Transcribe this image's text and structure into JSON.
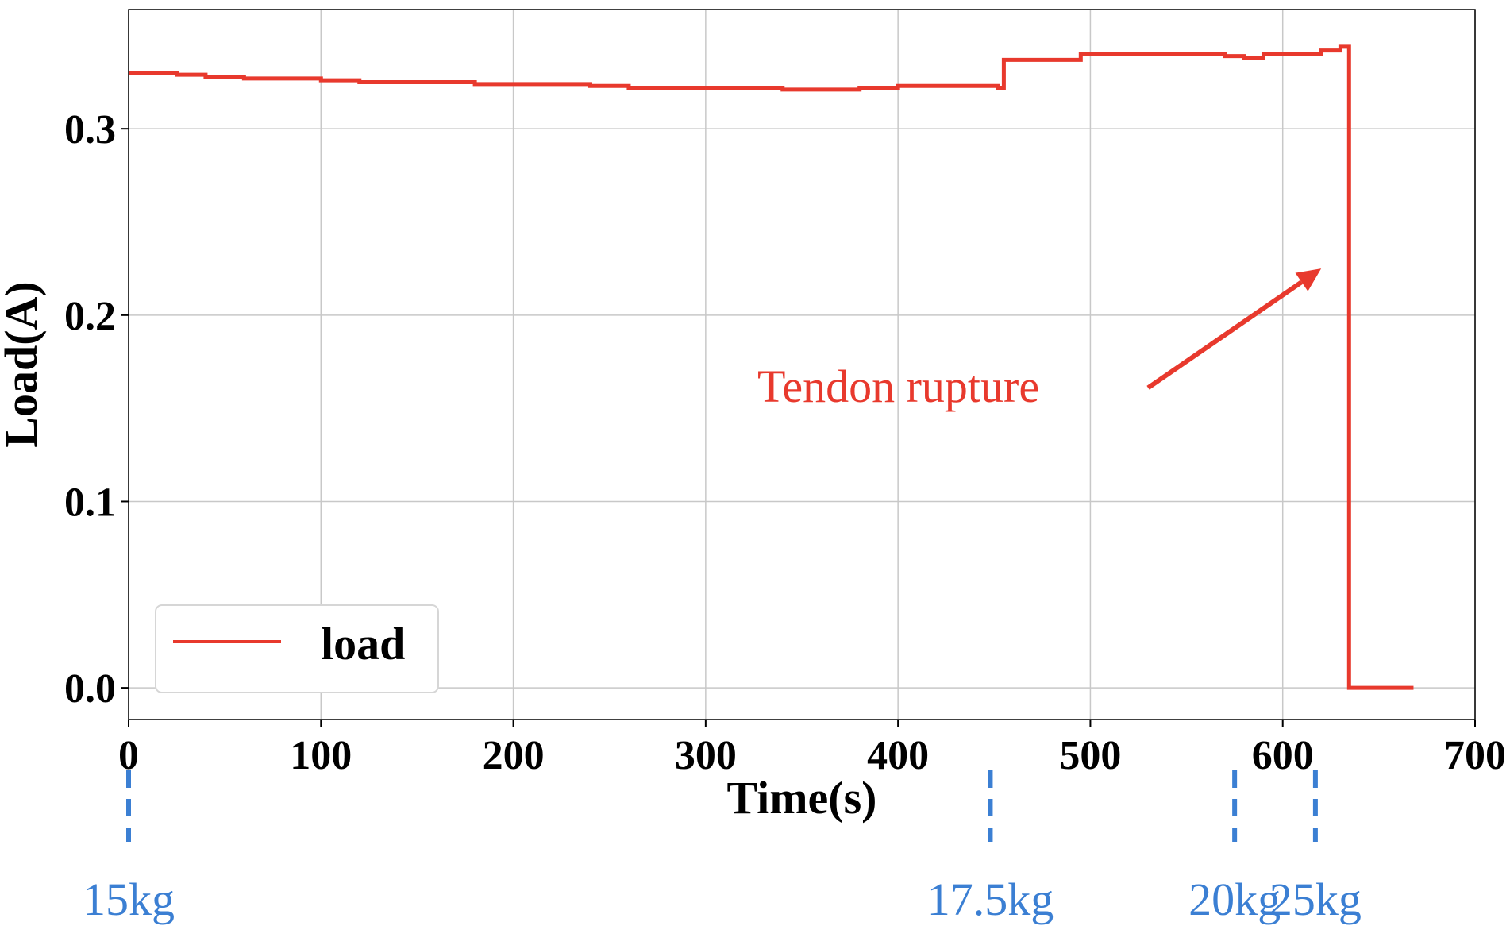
{
  "chart_data": {
    "type": "line",
    "xlabel": "Time(s)",
    "ylabel": "Load(A)",
    "xlim": [
      0,
      700
    ],
    "ylim": [
      -0.017,
      0.364
    ],
    "x_ticks": [
      0,
      100,
      200,
      300,
      400,
      500,
      600,
      700
    ],
    "y_ticks": [
      0.0,
      0.1,
      0.2,
      0.3
    ],
    "y_tick_labels": [
      "0.0",
      "0.1",
      "0.2",
      "0.3"
    ],
    "grid": true,
    "legend": {
      "position": "lower-left",
      "entries": [
        "load"
      ]
    },
    "series": [
      {
        "name": "load",
        "color": "#e8392d",
        "x": [
          0,
          10,
          25,
          40,
          60,
          80,
          100,
          120,
          150,
          180,
          200,
          220,
          240,
          260,
          280,
          300,
          320,
          340,
          360,
          380,
          400,
          420,
          440,
          452,
          455,
          470,
          480,
          490,
          495,
          510,
          530,
          550,
          570,
          580,
          590,
          600,
          620,
          630,
          634,
          634.5,
          650,
          668
        ],
        "y": [
          0.33,
          0.33,
          0.329,
          0.328,
          0.327,
          0.327,
          0.326,
          0.325,
          0.325,
          0.324,
          0.324,
          0.324,
          0.323,
          0.322,
          0.322,
          0.322,
          0.322,
          0.321,
          0.321,
          0.322,
          0.323,
          0.323,
          0.323,
          0.322,
          0.337,
          0.337,
          0.337,
          0.337,
          0.34,
          0.34,
          0.34,
          0.34,
          0.339,
          0.338,
          0.34,
          0.34,
          0.342,
          0.344,
          0.344,
          0.0,
          0.0,
          0.0
        ]
      }
    ],
    "annotations": [
      {
        "text": "Tendon rupture",
        "color": "#e8392d",
        "arrow_to": [
          620,
          0.225
        ],
        "arrow_from": [
          530,
          0.161
        ]
      }
    ],
    "load_markers": [
      {
        "label": "15kg",
        "x": 0
      },
      {
        "label": "17.5kg",
        "x": 448
      },
      {
        "label": "20kg",
        "x": 575
      },
      {
        "label": "25kg",
        "x": 617
      }
    ],
    "marker_color": "#3b7fd3"
  }
}
